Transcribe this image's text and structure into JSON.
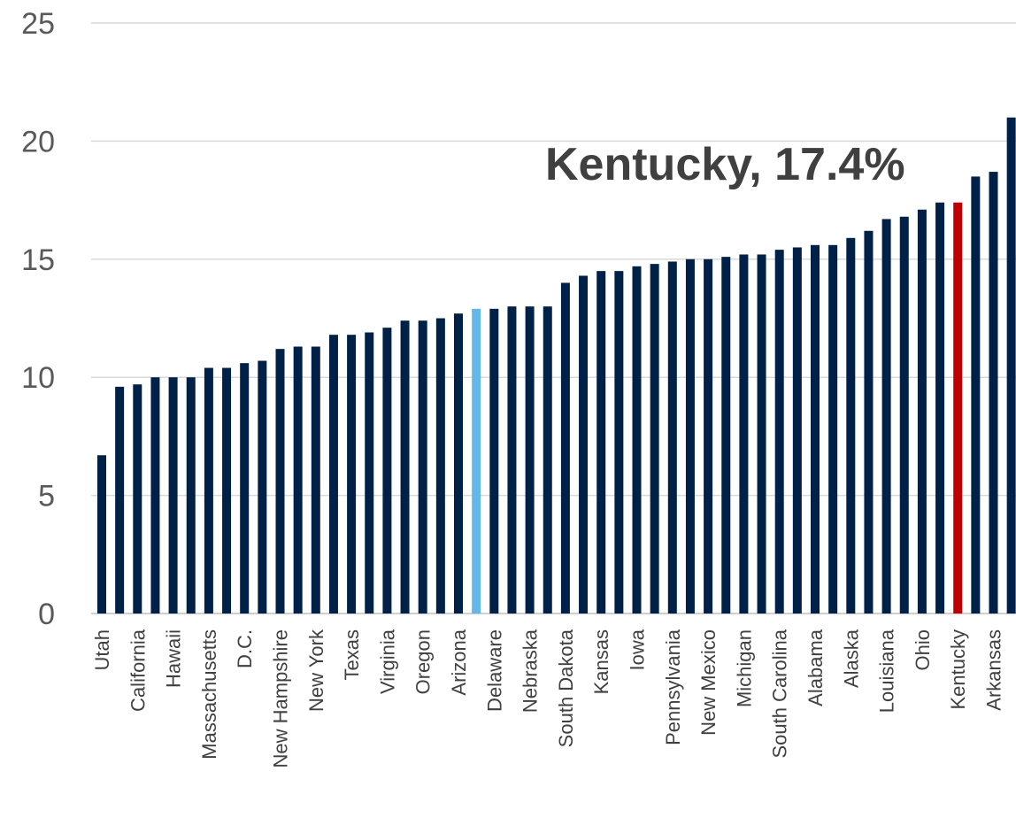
{
  "chart_data": {
    "type": "bar",
    "annotation": "Kentucky, 17.4%",
    "ylim": [
      0,
      25
    ],
    "yticks": [
      0,
      5,
      10,
      15,
      20,
      25
    ],
    "grid": true,
    "xtick_labels_shown": [
      "Utah",
      "California",
      "Hawaii",
      "Massachusetts",
      "D.C.",
      "New Hampshire",
      "New York",
      "Texas",
      "Virginia",
      "Oregon",
      "Arizona",
      "Delaware",
      "Nebraska",
      "South Dakota",
      "Kansas",
      "Iowa",
      "Pennsylvania",
      "New Mexico",
      "Michigan",
      "South Carolina",
      "Alabama",
      "Alaska",
      "Louisiana",
      "Ohio",
      "Kentucky",
      "Arkansas"
    ],
    "values": [
      6.7,
      9.6,
      9.7,
      10.0,
      10.0,
      10.0,
      10.4,
      10.4,
      10.6,
      10.7,
      11.2,
      11.3,
      11.3,
      11.8,
      11.8,
      11.9,
      12.1,
      12.4,
      12.4,
      12.5,
      12.7,
      12.9,
      12.9,
      13.0,
      13.0,
      13.0,
      14.0,
      14.3,
      14.5,
      14.5,
      14.7,
      14.8,
      14.9,
      15.0,
      15.0,
      15.1,
      15.2,
      15.2,
      15.4,
      15.5,
      15.6,
      15.6,
      15.9,
      16.2,
      16.7,
      16.8,
      17.1,
      17.4,
      17.4,
      18.5,
      18.7,
      21.0
    ],
    "bar_colors": {
      "default": "#002147",
      "highlight_national": "#63b8e8",
      "highlight_kentucky": "#c00000"
    },
    "highlight_national_index": 21,
    "highlight_kentucky_index": 48
  }
}
